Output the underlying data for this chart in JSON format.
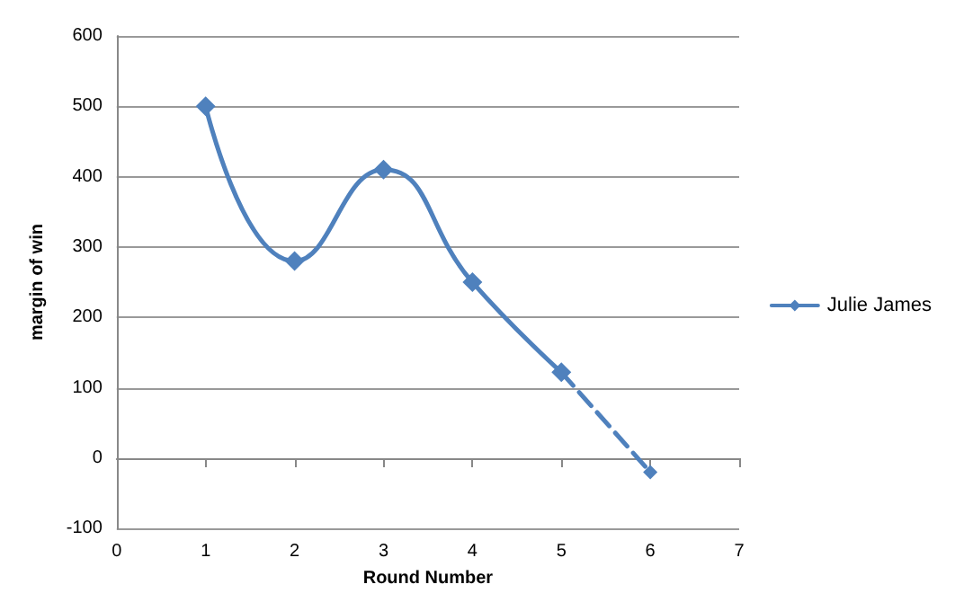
{
  "chart_data": {
    "type": "line",
    "xlabel": "Round Number",
    "ylabel": "margin of win",
    "series": [
      {
        "name": "Julie James",
        "color": "#4f81bd",
        "x": [
          1,
          2,
          3,
          4,
          5
        ],
        "values": [
          500,
          280,
          410,
          250,
          122
        ],
        "line_style": "solid"
      },
      {
        "color": "#4f81bd",
        "x": [
          5,
          6
        ],
        "values": [
          122,
          -20
        ],
        "line_style": "dashed"
      }
    ],
    "xlim": [
      0,
      7
    ],
    "xticks": [
      0,
      1,
      2,
      3,
      4,
      5,
      6,
      7
    ],
    "ylim": [
      -100,
      600
    ],
    "yticks": [
      -100,
      0,
      100,
      200,
      300,
      400,
      500,
      600
    ],
    "grid": "y",
    "legend": "right",
    "marker": "diamond"
  }
}
